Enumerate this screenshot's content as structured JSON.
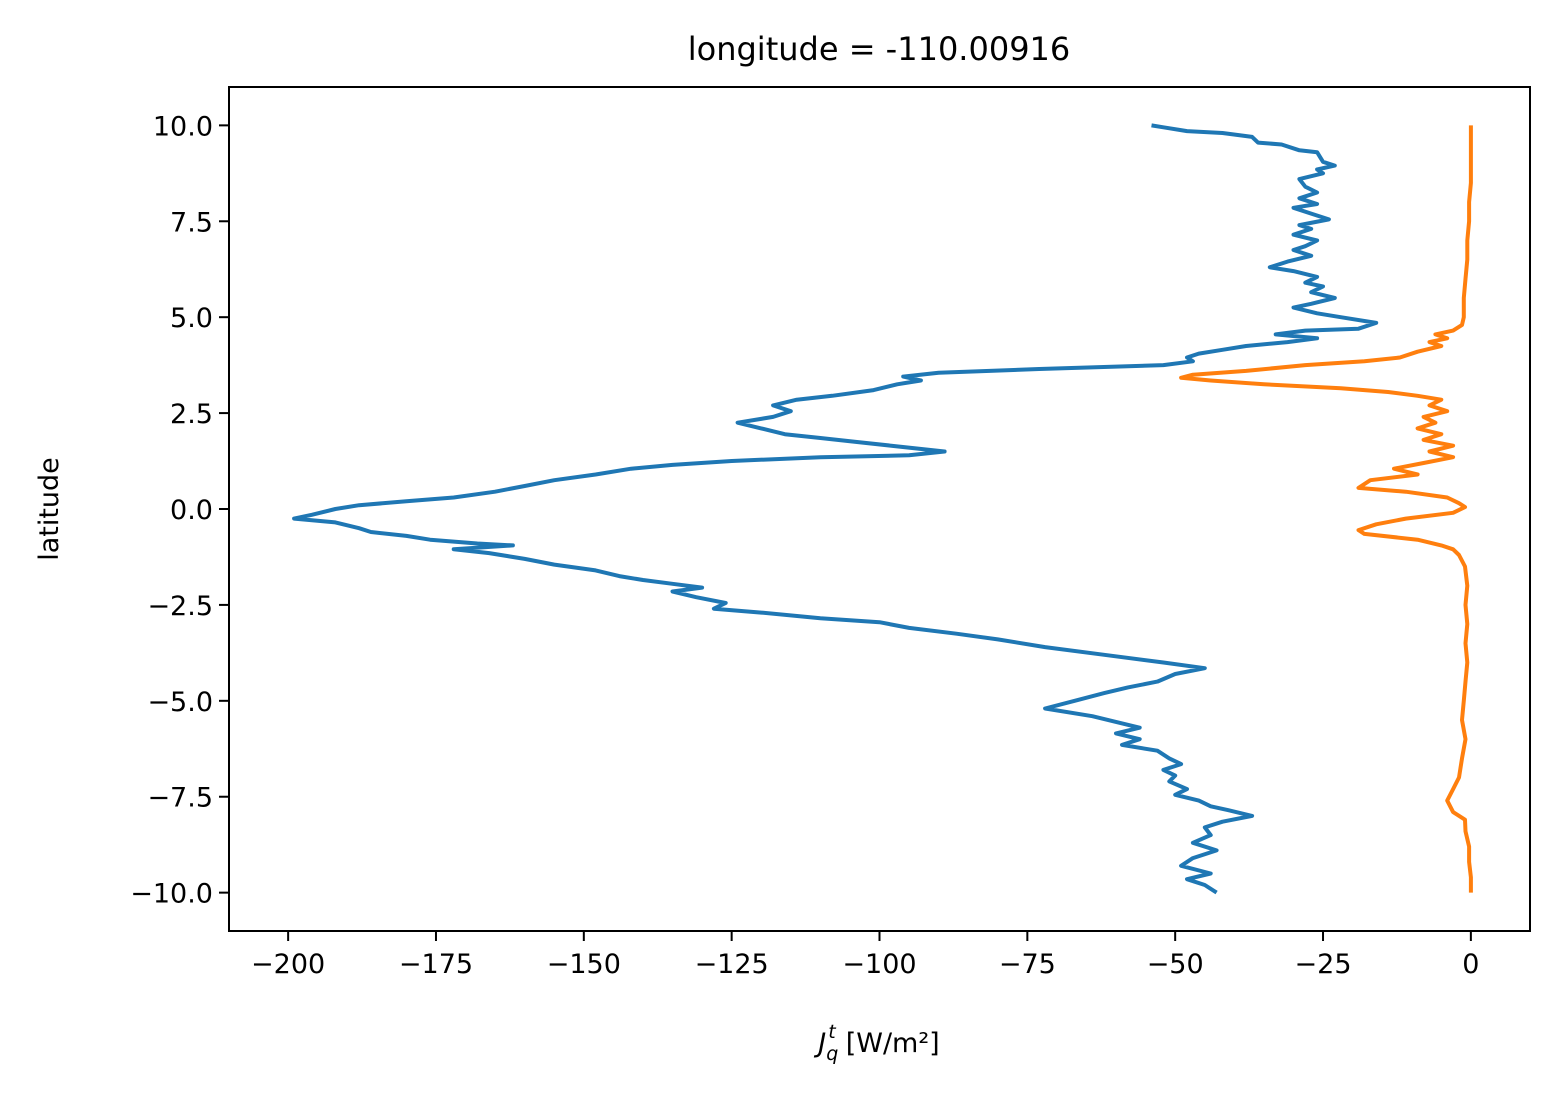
{
  "chart_data": {
    "type": "line",
    "title": "longitude = -110.00916",
    "xlabel": {
      "var": "J",
      "sub": "q",
      "sup": "t",
      "units": "[W/m²]"
    },
    "ylabel": "latitude",
    "xlim": [
      -210,
      10
    ],
    "ylim": [
      -11,
      11
    ],
    "xticks": [
      -200,
      -175,
      -150,
      -125,
      -100,
      -75,
      -50,
      -25,
      0
    ],
    "xtick_labels": [
      "−200",
      "−175",
      "−150",
      "−125",
      "−100",
      "−75",
      "−50",
      "−25",
      "0"
    ],
    "yticks": [
      10,
      7.5,
      5,
      2.5,
      0,
      -2.5,
      -5,
      -7.5,
      -10
    ],
    "ytick_labels": [
      "10.0",
      "7.5",
      "5.0",
      "2.5",
      "0.0",
      "−2.5",
      "−5.0",
      "−7.5",
      "−10.0"
    ],
    "grid": false,
    "series": [
      {
        "color": "#1f77b4",
        "points": [
          [
            -54,
            10.0
          ],
          [
            -52,
            9.95
          ],
          [
            -48,
            9.85
          ],
          [
            -42,
            9.8
          ],
          [
            -37,
            9.7
          ],
          [
            -36,
            9.55
          ],
          [
            -32,
            9.5
          ],
          [
            -29,
            9.35
          ],
          [
            -26,
            9.3
          ],
          [
            -25,
            9.05
          ],
          [
            -23,
            8.95
          ],
          [
            -26,
            8.85
          ],
          [
            -25,
            8.75
          ],
          [
            -29,
            8.6
          ],
          [
            -28,
            8.4
          ],
          [
            -26,
            8.25
          ],
          [
            -29,
            8.1
          ],
          [
            -26,
            7.95
          ],
          [
            -30,
            7.85
          ],
          [
            -27,
            7.7
          ],
          [
            -24,
            7.55
          ],
          [
            -29,
            7.4
          ],
          [
            -27,
            7.3
          ],
          [
            -30,
            7.15
          ],
          [
            -26,
            7.0
          ],
          [
            -28,
            6.85
          ],
          [
            -30,
            6.75
          ],
          [
            -27,
            6.6
          ],
          [
            -31,
            6.45
          ],
          [
            -34,
            6.3
          ],
          [
            -30,
            6.2
          ],
          [
            -26,
            6.05
          ],
          [
            -28,
            5.9
          ],
          [
            -25,
            5.8
          ],
          [
            -27,
            5.65
          ],
          [
            -23,
            5.5
          ],
          [
            -27,
            5.35
          ],
          [
            -30,
            5.25
          ],
          [
            -26,
            5.1
          ],
          [
            -22,
            5.0
          ],
          [
            -16,
            4.85
          ],
          [
            -19,
            4.7
          ],
          [
            -28,
            4.65
          ],
          [
            -33,
            4.55
          ],
          [
            -26,
            4.45
          ],
          [
            -31,
            4.35
          ],
          [
            -38,
            4.25
          ],
          [
            -42,
            4.15
          ],
          [
            -46,
            4.05
          ],
          [
            -48,
            3.95
          ],
          [
            -47,
            3.85
          ],
          [
            -52,
            3.75
          ],
          [
            -73,
            3.65
          ],
          [
            -90,
            3.55
          ],
          [
            -96,
            3.45
          ],
          [
            -93,
            3.35
          ],
          [
            -97,
            3.25
          ],
          [
            -101,
            3.1
          ],
          [
            -108,
            2.95
          ],
          [
            -114,
            2.85
          ],
          [
            -118,
            2.7
          ],
          [
            -115,
            2.55
          ],
          [
            -118,
            2.4
          ],
          [
            -124,
            2.25
          ],
          [
            -120,
            2.1
          ],
          [
            -116,
            1.95
          ],
          [
            -110,
            1.85
          ],
          [
            -104,
            1.75
          ],
          [
            -98,
            1.65
          ],
          [
            -89,
            1.5
          ],
          [
            -95,
            1.4
          ],
          [
            -110,
            1.35
          ],
          [
            -125,
            1.25
          ],
          [
            -135,
            1.15
          ],
          [
            -142,
            1.05
          ],
          [
            -148,
            0.9
          ],
          [
            -155,
            0.75
          ],
          [
            -160,
            0.6
          ],
          [
            -165,
            0.45
          ],
          [
            -172,
            0.3
          ],
          [
            -180,
            0.2
          ],
          [
            -188,
            0.1
          ],
          [
            -192,
            0.0
          ],
          [
            -196,
            -0.15
          ],
          [
            -199,
            -0.25
          ],
          [
            -192,
            -0.35
          ],
          [
            -188,
            -0.5
          ],
          [
            -186,
            -0.6
          ],
          [
            -180,
            -0.7
          ],
          [
            -176,
            -0.8
          ],
          [
            -168,
            -0.9
          ],
          [
            -162,
            -0.95
          ],
          [
            -172,
            -1.05
          ],
          [
            -166,
            -1.15
          ],
          [
            -160,
            -1.3
          ],
          [
            -155,
            -1.45
          ],
          [
            -148,
            -1.6
          ],
          [
            -144,
            -1.75
          ],
          [
            -140,
            -1.85
          ],
          [
            -135,
            -1.95
          ],
          [
            -130,
            -2.05
          ],
          [
            -135,
            -2.15
          ],
          [
            -131,
            -2.3
          ],
          [
            -126,
            -2.45
          ],
          [
            -128,
            -2.6
          ],
          [
            -120,
            -2.7
          ],
          [
            -110,
            -2.85
          ],
          [
            -100,
            -2.95
          ],
          [
            -95,
            -3.1
          ],
          [
            -87,
            -3.25
          ],
          [
            -80,
            -3.4
          ],
          [
            -72,
            -3.6
          ],
          [
            -62,
            -3.8
          ],
          [
            -52,
            -4.0
          ],
          [
            -45,
            -4.15
          ],
          [
            -50,
            -4.3
          ],
          [
            -53,
            -4.5
          ],
          [
            -58,
            -4.65
          ],
          [
            -62,
            -4.8
          ],
          [
            -67,
            -5.0
          ],
          [
            -72,
            -5.2
          ],
          [
            -64,
            -5.4
          ],
          [
            -60,
            -5.55
          ],
          [
            -56,
            -5.7
          ],
          [
            -60,
            -5.85
          ],
          [
            -56,
            -6.0
          ],
          [
            -59,
            -6.15
          ],
          [
            -53,
            -6.3
          ],
          [
            -51,
            -6.5
          ],
          [
            -49,
            -6.65
          ],
          [
            -52,
            -6.8
          ],
          [
            -50,
            -6.95
          ],
          [
            -51,
            -7.1
          ],
          [
            -48,
            -7.3
          ],
          [
            -50,
            -7.45
          ],
          [
            -46,
            -7.6
          ],
          [
            -44,
            -7.75
          ],
          [
            -41,
            -7.85
          ],
          [
            -37,
            -8.0
          ],
          [
            -42,
            -8.15
          ],
          [
            -45,
            -8.3
          ],
          [
            -44,
            -8.5
          ],
          [
            -47,
            -8.7
          ],
          [
            -43,
            -8.9
          ],
          [
            -47,
            -9.1
          ],
          [
            -49,
            -9.3
          ],
          [
            -44,
            -9.5
          ],
          [
            -48,
            -9.65
          ],
          [
            -45,
            -9.8
          ],
          [
            -43,
            -10.0
          ]
        ]
      },
      {
        "color": "#ff7f0e",
        "points": [
          [
            0,
            10.0
          ],
          [
            0,
            9.5
          ],
          [
            0,
            9.0
          ],
          [
            0,
            8.5
          ],
          [
            -0.3,
            8.0
          ],
          [
            -0.3,
            7.5
          ],
          [
            -0.6,
            7.0
          ],
          [
            -0.6,
            6.5
          ],
          [
            -0.9,
            6.0
          ],
          [
            -1.2,
            5.5
          ],
          [
            -1.2,
            5.0
          ],
          [
            -1.5,
            4.8
          ],
          [
            -3,
            4.65
          ],
          [
            -6,
            4.55
          ],
          [
            -4,
            4.45
          ],
          [
            -7,
            4.35
          ],
          [
            -5,
            4.25
          ],
          [
            -9,
            4.1
          ],
          [
            -12,
            3.95
          ],
          [
            -18,
            3.85
          ],
          [
            -28,
            3.75
          ],
          [
            -38,
            3.6
          ],
          [
            -47,
            3.5
          ],
          [
            -49,
            3.42
          ],
          [
            -44,
            3.35
          ],
          [
            -35,
            3.25
          ],
          [
            -22,
            3.15
          ],
          [
            -14,
            3.05
          ],
          [
            -9,
            2.95
          ],
          [
            -5,
            2.85
          ],
          [
            -7,
            2.7
          ],
          [
            -4,
            2.55
          ],
          [
            -8,
            2.4
          ],
          [
            -6,
            2.25
          ],
          [
            -9,
            2.1
          ],
          [
            -5,
            1.95
          ],
          [
            -8,
            1.8
          ],
          [
            -3,
            1.65
          ],
          [
            -7,
            1.5
          ],
          [
            -3,
            1.35
          ],
          [
            -8,
            1.2
          ],
          [
            -13,
            1.05
          ],
          [
            -9,
            0.9
          ],
          [
            -17,
            0.75
          ],
          [
            -19,
            0.55
          ],
          [
            -11,
            0.45
          ],
          [
            -4,
            0.3
          ],
          [
            -2,
            0.15
          ],
          [
            -1,
            0.05
          ],
          [
            -3,
            -0.1
          ],
          [
            -11,
            -0.25
          ],
          [
            -16,
            -0.4
          ],
          [
            -19,
            -0.55
          ],
          [
            -18,
            -0.65
          ],
          [
            -9,
            -0.8
          ],
          [
            -5,
            -0.95
          ],
          [
            -3,
            -1.05
          ],
          [
            -2,
            -1.2
          ],
          [
            -1,
            -1.5
          ],
          [
            -0.6,
            -2.0
          ],
          [
            -0.9,
            -2.5
          ],
          [
            -0.6,
            -3.0
          ],
          [
            -0.9,
            -3.5
          ],
          [
            -0.6,
            -4.0
          ],
          [
            -0.9,
            -4.5
          ],
          [
            -1.2,
            -5.0
          ],
          [
            -1.5,
            -5.5
          ],
          [
            -0.9,
            -6.0
          ],
          [
            -1.5,
            -6.5
          ],
          [
            -2,
            -7.0
          ],
          [
            -3,
            -7.3
          ],
          [
            -4,
            -7.6
          ],
          [
            -3,
            -7.9
          ],
          [
            -1,
            -8.1
          ],
          [
            -0.9,
            -8.4
          ],
          [
            -0.3,
            -8.8
          ],
          [
            -0.3,
            -9.2
          ],
          [
            0,
            -9.6
          ],
          [
            0,
            -10.0
          ]
        ]
      }
    ]
  }
}
